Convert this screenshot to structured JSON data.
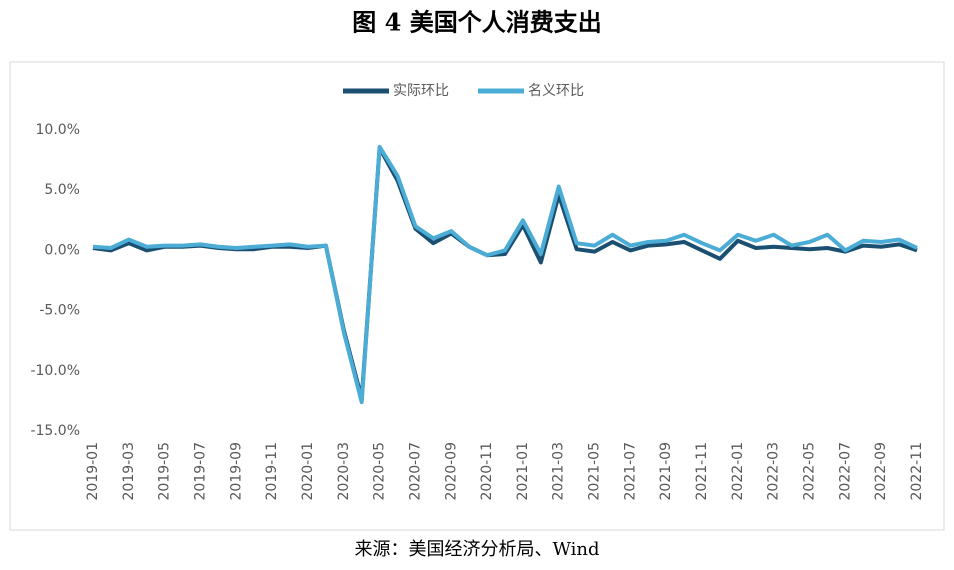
{
  "chart_data": {
    "type": "line",
    "title": "图 4 美国个人消费支出",
    "source": "来源：美国经济分析局、Wind",
    "categories": [
      "2019-01",
      null,
      "2019-03",
      null,
      "2019-05",
      null,
      "2019-07",
      null,
      "2019-09",
      null,
      "2019-11",
      null,
      "2020-01",
      null,
      "2020-03",
      null,
      "2020-05",
      null,
      "2020-07",
      null,
      "2020-09",
      null,
      "2020-11",
      null,
      "2021-01",
      null,
      "2021-03",
      null,
      "2021-05",
      null,
      "2021-07",
      null,
      "2021-09",
      null,
      "2021-11",
      null,
      "2022-01",
      null,
      "2022-03",
      null,
      "2022-05",
      null,
      "2022-07",
      null,
      "2022-09",
      null,
      "2022-11"
    ],
    "series": [
      {
        "name": "实际环比",
        "color": "#1b4f72",
        "values": [
          0.2,
          0.0,
          0.6,
          0.0,
          0.3,
          0.3,
          0.4,
          0.2,
          0.1,
          0.1,
          0.3,
          0.3,
          0.2,
          0.4,
          -6.6,
          -12.3,
          8.5,
          5.8,
          1.8,
          0.6,
          1.4,
          0.3,
          -0.4,
          -0.3,
          2.1,
          -1.0,
          4.6,
          0.1,
          -0.1,
          0.7,
          0.0,
          0.4,
          0.5,
          0.7,
          0.0,
          -0.7,
          0.8,
          0.2,
          0.3,
          0.2,
          0.1,
          0.2,
          -0.1,
          0.4,
          0.3,
          0.5,
          0.0
        ]
      },
      {
        "name": "名义环比",
        "color": "#4bacd6",
        "values": [
          0.3,
          0.2,
          0.9,
          0.3,
          0.4,
          0.4,
          0.5,
          0.3,
          0.2,
          0.3,
          0.4,
          0.5,
          0.3,
          0.4,
          -6.8,
          -12.6,
          8.6,
          6.2,
          2.0,
          1.0,
          1.6,
          0.3,
          -0.4,
          0.0,
          2.5,
          -0.3,
          5.3,
          0.6,
          0.4,
          1.3,
          0.4,
          0.7,
          0.8,
          1.3,
          0.6,
          0.0,
          1.3,
          0.8,
          1.3,
          0.4,
          0.7,
          1.3,
          0.0,
          0.8,
          0.7,
          0.9,
          0.2
        ]
      }
    ],
    "ylim": [
      -15,
      10
    ],
    "yticks": [
      {
        "value": -15,
        "label": "-15.0%"
      },
      {
        "value": -10,
        "label": "-10.0%"
      },
      {
        "value": -5,
        "label": "-5.0%"
      },
      {
        "value": 0,
        "label": "0.0%"
      },
      {
        "value": 5,
        "label": "5.0%"
      },
      {
        "value": 10,
        "label": "10.0%"
      }
    ],
    "grid": false,
    "legend": "top"
  }
}
